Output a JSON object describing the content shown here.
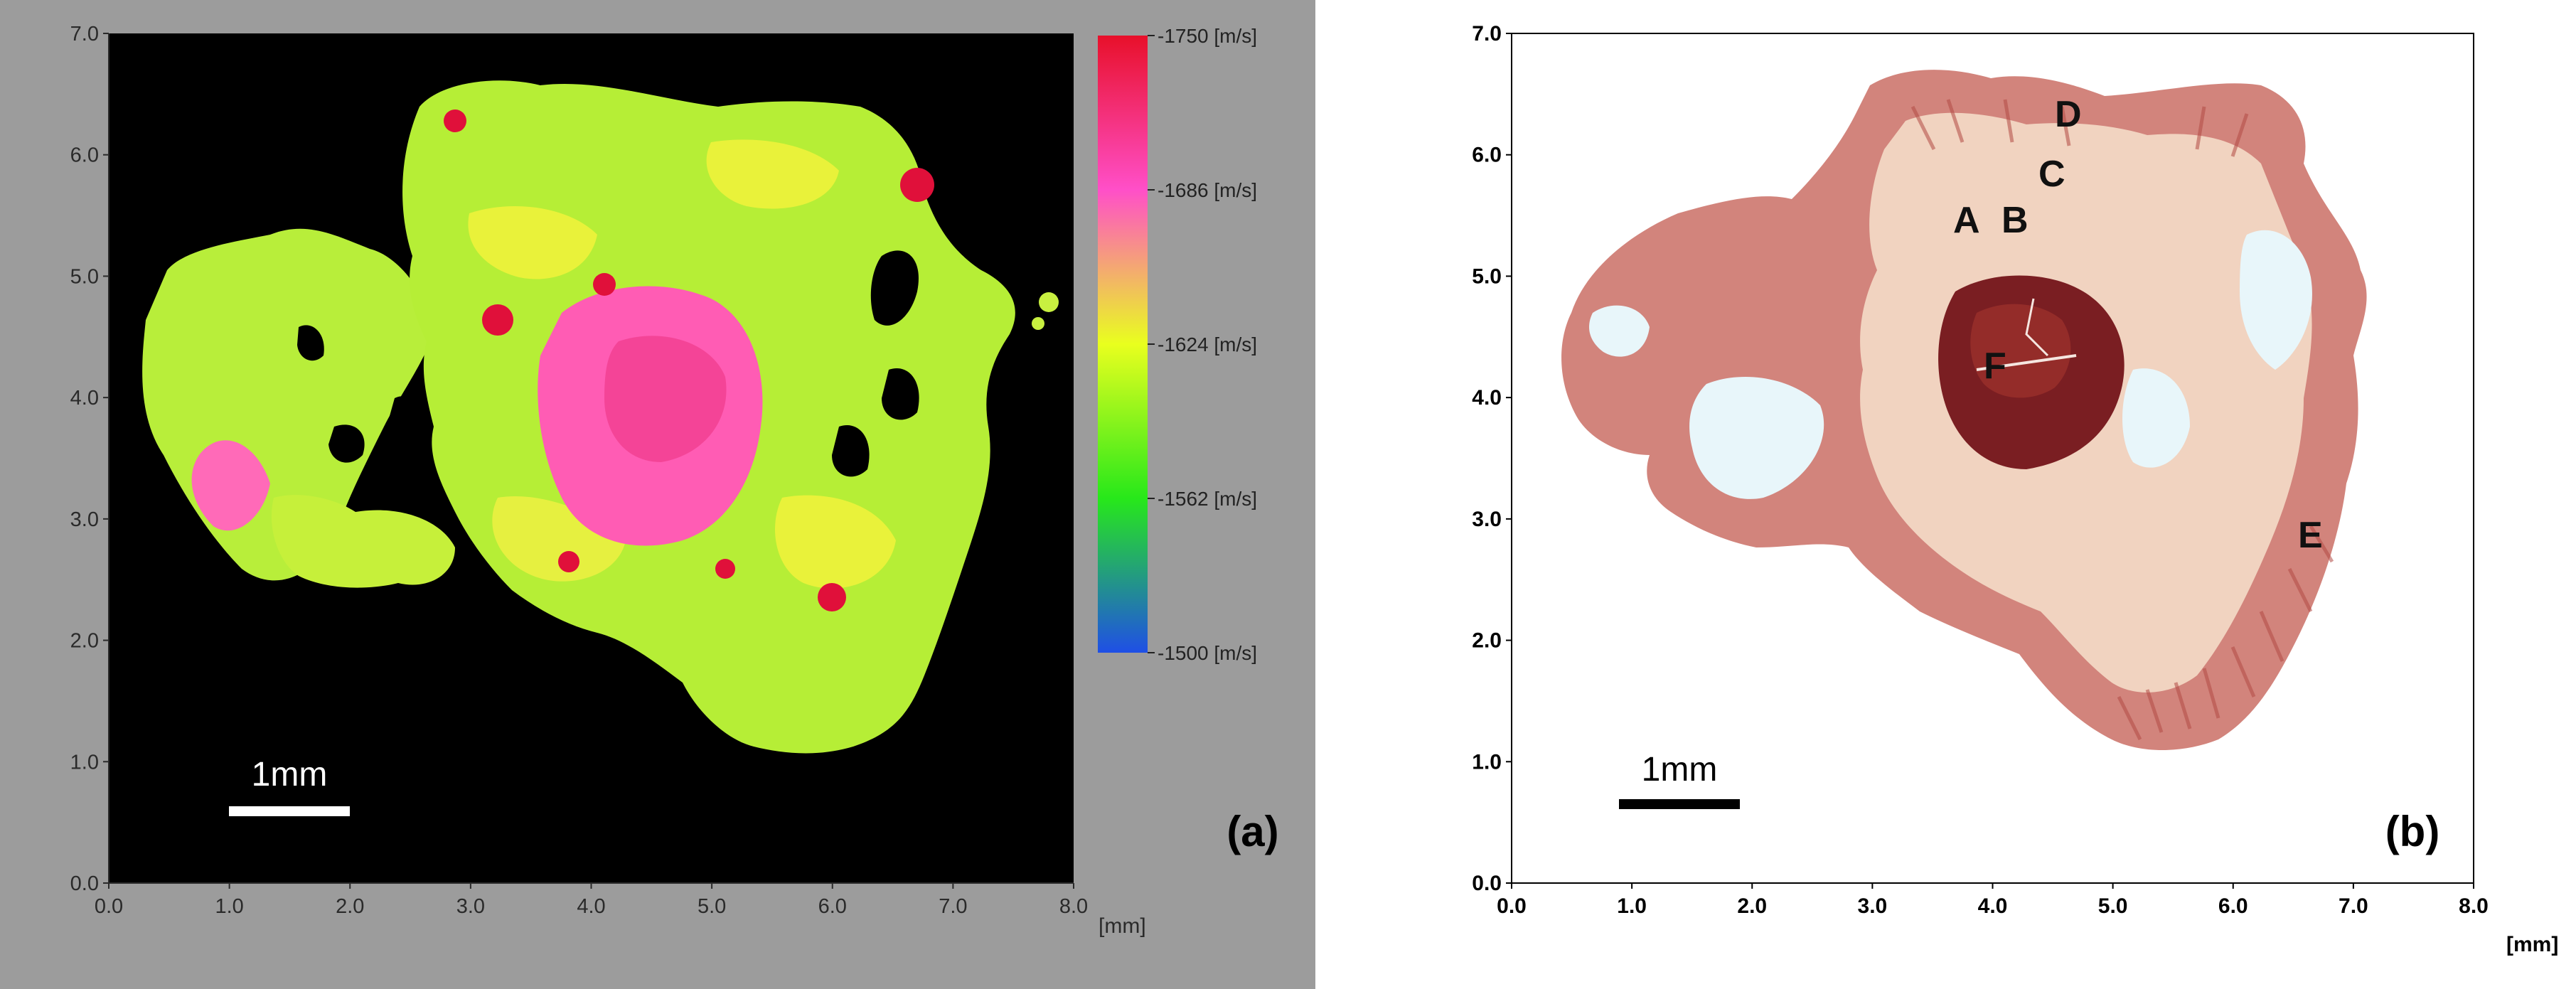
{
  "panel_a": {
    "label": "(a)",
    "x_ticks": [
      "0.0",
      "1.0",
      "2.0",
      "3.0",
      "4.0",
      "5.0",
      "6.0",
      "7.0",
      "8.0"
    ],
    "y_ticks": [
      "0.0",
      "1.0",
      "2.0",
      "3.0",
      "4.0",
      "5.0",
      "6.0",
      "7.0"
    ],
    "x_unit": "[mm]",
    "scale_bar": "1mm",
    "colorbar": {
      "labels": [
        "-1750 [m/s]",
        "-1686 [m/s]",
        "-1624 [m/s]",
        "-1562 [m/s]",
        "-1500 [m/s]"
      ],
      "colors": [
        "#e8102a",
        "#ff4fc8",
        "#e9ff1e",
        "#27e81a",
        "#1f4fe6"
      ]
    },
    "image_colors": {
      "background": "#000000",
      "tissue_green": "#9ef23a",
      "tissue_yellow": "#e6f23a",
      "tissue_pink": "#ff5ab0",
      "tissue_red": "#e0103a"
    }
  },
  "panel_b": {
    "label": "(b)",
    "x_ticks": [
      "0.0",
      "1.0",
      "2.0",
      "3.0",
      "4.0",
      "5.0",
      "6.0",
      "7.0",
      "8.0"
    ],
    "y_ticks": [
      "0.0",
      "1.0",
      "2.0",
      "3.0",
      "4.0",
      "5.0",
      "6.0",
      "7.0"
    ],
    "x_unit": "[mm]",
    "scale_bar": "1mm",
    "region_labels": [
      "A",
      "B",
      "C",
      "D",
      "E",
      "F"
    ],
    "image_colors": {
      "tissue_light": "#f2d6c4",
      "tissue_pink": "#d89a8c",
      "tissue_dark": "#a8463e",
      "core": "#7a1e22",
      "cavity": "#e8f6fa"
    }
  }
}
